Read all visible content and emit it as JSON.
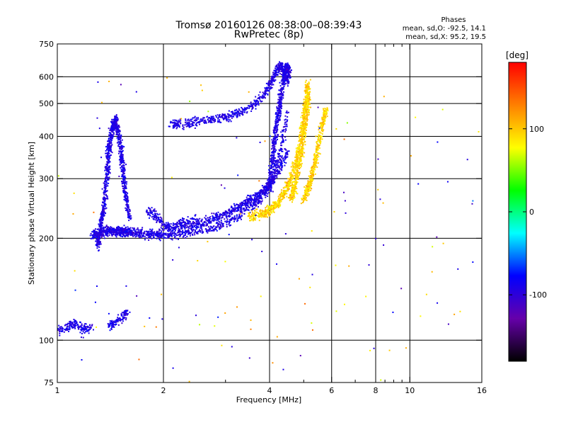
{
  "chart_data": {
    "type": "scatter",
    "title": "Tromsø 20160126 08:38:00–08:39:43",
    "subtitle": "RwPretec (8p)",
    "phase_info": {
      "heading": "Phases",
      "line_o": "mean, sd,O: -92.5, 14.1",
      "line_x": "mean, sd,X:  95.2, 19.5"
    },
    "xlabel": "Frequency [MHz]",
    "ylabel": "Stationary phase Virtual Height [km]",
    "x_scale": "log",
    "y_scale": "log",
    "xlim": [
      1,
      16
    ],
    "ylim": [
      75,
      750
    ],
    "x_ticks": [
      1,
      2,
      4,
      6,
      8,
      10,
      16
    ],
    "x_tick_labels": [
      "1",
      "2",
      "4",
      "6",
      "8",
      "10",
      "16"
    ],
    "x_grid": [
      2,
      4,
      6,
      8,
      10
    ],
    "x_minor": [
      3,
      5,
      7,
      9
    ],
    "x_minor_hi": [
      8.5,
      9,
      9.5
    ],
    "y_ticks": [
      75,
      100,
      200,
      300,
      400,
      500,
      600,
      750
    ],
    "y_tick_labels": [
      "75",
      "100",
      "200",
      "300",
      "400",
      "500",
      "600",
      "750"
    ],
    "y_grid": [
      100,
      200,
      300,
      400,
      500,
      600
    ],
    "grid": true,
    "colorbar": {
      "label": "[deg]",
      "range": [
        -180,
        180
      ],
      "ticks": [
        100,
        0,
        -100
      ],
      "tick_labels": [
        "100",
        "0",
        "-100"
      ],
      "colors": [
        "#ff0000",
        "#ff8000",
        "#ffff00",
        "#00ff00",
        "#00ffff",
        "#0000ff",
        "#6600aa",
        "#000000"
      ]
    },
    "series": [
      {
        "mode": "O",
        "mean_phase_deg": -92.5,
        "sd_phase_deg": 14.1,
        "traces": [
          {
            "x": [
              1.0,
              1.05,
              1.1,
              1.15,
              1.2,
              1.25
            ],
            "y": [
              107,
              108,
              112,
              110,
              108,
              109
            ]
          },
          {
            "x": [
              1.26,
              1.3,
              1.35,
              1.4,
              1.45,
              1.5,
              1.55,
              1.6,
              1.7,
              1.8,
              1.9,
              2.0,
              2.2,
              2.4,
              2.7,
              3.0,
              3.3,
              3.6,
              3.9,
              4.1,
              4.3,
              4.5
            ],
            "y": [
              205,
              207,
              208,
              210,
              210,
              209,
              210,
              208,
              207,
              206,
              205,
              205,
              206,
              209,
              214,
              222,
              235,
              250,
              272,
              300,
              360,
              470
            ]
          },
          {
            "x": [
              1.3,
              1.32,
              1.35,
              1.38,
              1.4,
              1.43,
              1.46,
              1.5,
              1.53,
              1.56,
              1.6
            ],
            "y": [
              190,
              210,
              240,
              300,
              360,
              420,
              450,
              400,
              330,
              270,
              230
            ]
          },
          {
            "x": [
              1.8,
              1.9,
              2.0,
              2.1,
              2.2,
              2.3,
              2.5
            ],
            "y": [
              240,
              235,
              220,
              215,
              218,
              222,
              230
            ]
          },
          {
            "x": [
              2.1,
              2.3,
              2.5,
              2.7,
              3.0,
              3.3,
              3.6,
              3.85,
              4.0,
              4.1,
              4.2,
              4.3,
              4.4,
              4.5
            ],
            "y": [
              432,
              436,
              443,
              448,
              455,
              470,
              495,
              530,
              560,
              600,
              630,
              650,
              620,
              580
            ]
          },
          {
            "x": [
              4.0,
              4.05,
              4.1,
              4.15,
              4.2,
              4.25,
              4.3,
              4.35,
              4.4,
              4.45,
              4.5,
              4.55
            ],
            "y": [
              280,
              320,
              360,
              400,
              440,
              480,
              520,
              560,
              600,
              630,
              640,
              610
            ]
          },
          {
            "x": [
              2.4,
              2.7,
              3.0,
              3.3,
              3.6,
              3.9,
              4.2,
              4.5
            ],
            "y": [
              218,
              226,
              236,
              248,
              262,
              280,
              310,
              360
            ]
          },
          {
            "x": [
              1.4,
              1.45,
              1.5,
              1.55,
              1.58
            ],
            "y": [
              110,
              112,
              115,
              118,
              122
            ]
          }
        ]
      },
      {
        "mode": "X",
        "mean_phase_deg": 95.2,
        "sd_phase_deg": 19.5,
        "traces": [
          {
            "x": [
              3.5,
              3.8,
              4.0,
              4.2,
              4.4,
              4.6,
              4.8,
              4.95,
              5.05,
              5.15
            ],
            "y": [
              232,
              236,
              242,
              252,
              270,
              300,
              350,
              420,
              500,
              580
            ]
          },
          {
            "x": [
              4.6,
              4.7,
              4.8,
              4.9,
              5.0,
              5.1,
              5.15
            ],
            "y": [
              260,
              280,
              310,
              350,
              400,
              470,
              540
            ]
          },
          {
            "x": [
              5.0,
              5.2,
              5.4,
              5.6,
              5.8
            ],
            "y": [
              260,
              290,
              340,
              420,
              480
            ]
          }
        ]
      }
    ]
  }
}
